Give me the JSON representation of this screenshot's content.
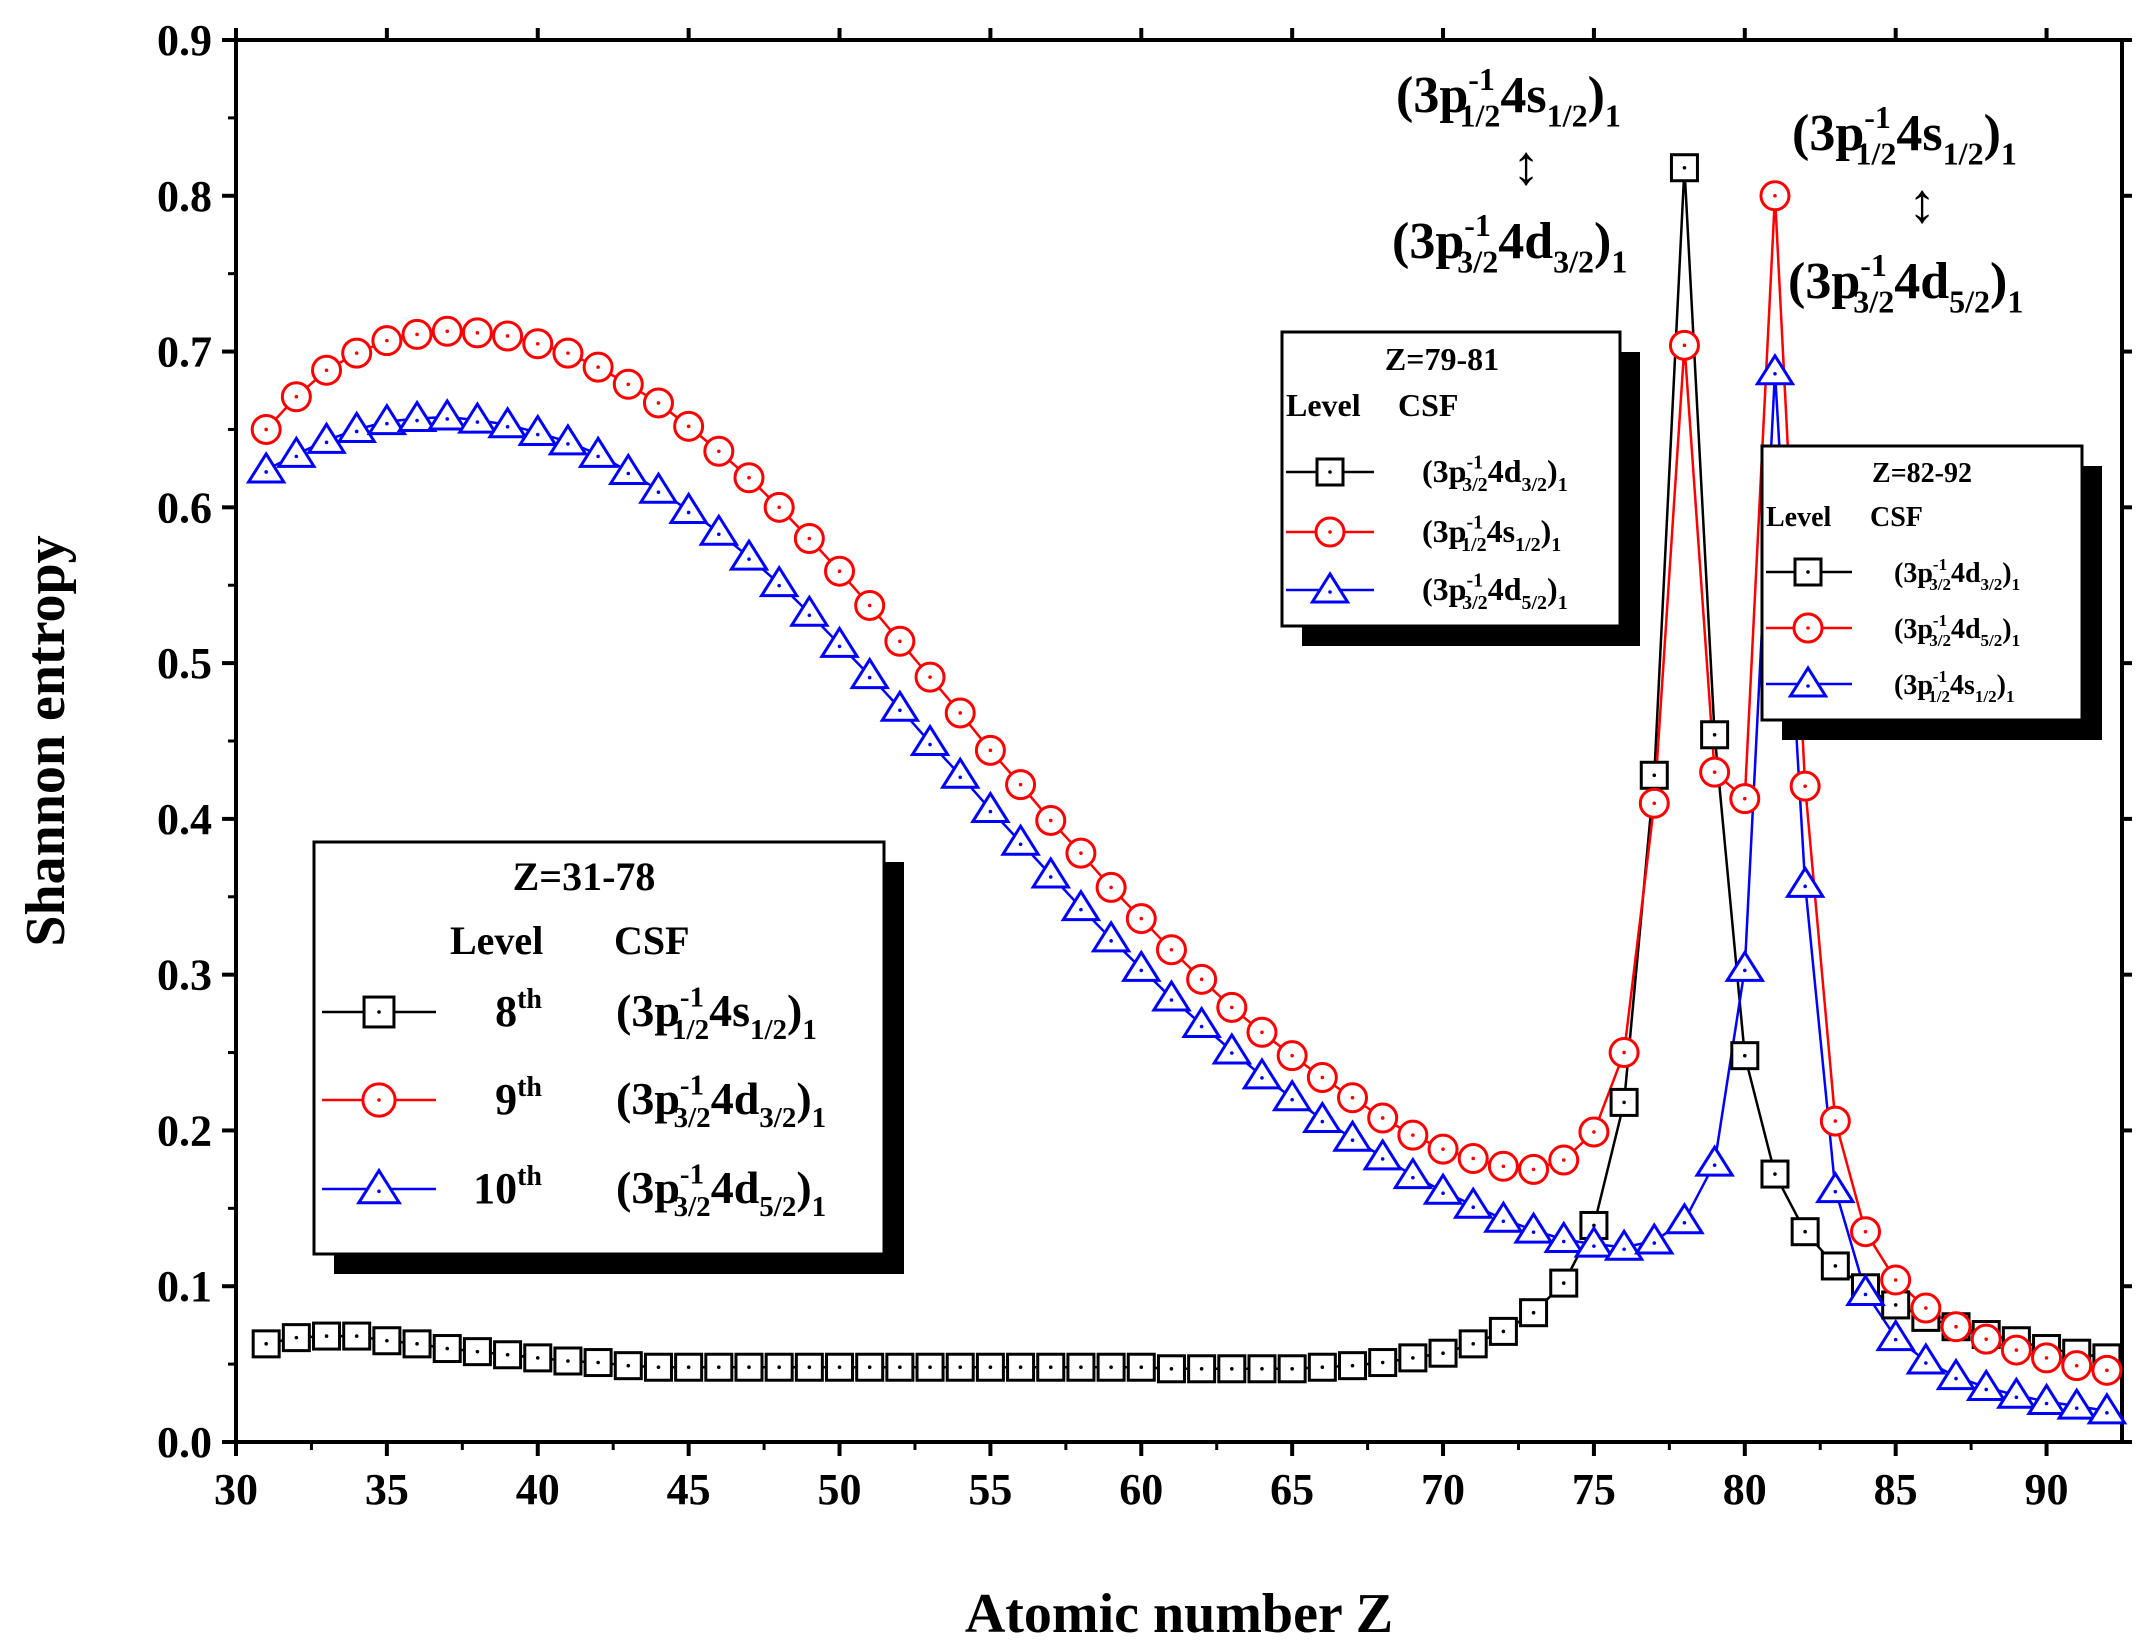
{
  "chart_data": {
    "type": "line",
    "xlabel": "Atomic number Z",
    "ylabel": "Shannon entropy",
    "xlim": [
      30,
      92.5
    ],
    "ylim": [
      0.0,
      0.9
    ],
    "xticks": [
      "30",
      "35",
      "40",
      "45",
      "50",
      "55",
      "60",
      "65",
      "70",
      "75",
      "80",
      "85",
      "90"
    ],
    "yticks": [
      "0.0",
      "0.1",
      "0.2",
      "0.3",
      "0.4",
      "0.5",
      "0.6",
      "0.7",
      "0.8",
      "0.9"
    ],
    "x": [
      31,
      32,
      33,
      34,
      35,
      36,
      37,
      38,
      39,
      40,
      41,
      42,
      43,
      44,
      45,
      46,
      47,
      48,
      49,
      50,
      51,
      52,
      53,
      54,
      55,
      56,
      57,
      58,
      59,
      60,
      61,
      62,
      63,
      64,
      65,
      66,
      67,
      68,
      69,
      70,
      71,
      72,
      73,
      74,
      75,
      76,
      77,
      78,
      79,
      80,
      81,
      82,
      83,
      84,
      85,
      86,
      87,
      88,
      89,
      90,
      91,
      92
    ],
    "series": [
      {
        "name": "black-square",
        "color": "#000000",
        "marker": "square",
        "values": [
          0.063,
          0.067,
          0.068,
          0.068,
          0.065,
          0.063,
          0.06,
          0.058,
          0.056,
          0.054,
          0.052,
          0.051,
          0.049,
          0.048,
          0.048,
          0.048,
          0.048,
          0.048,
          0.048,
          0.048,
          0.048,
          0.048,
          0.048,
          0.048,
          0.048,
          0.048,
          0.048,
          0.048,
          0.048,
          0.048,
          0.047,
          0.047,
          0.047,
          0.047,
          0.047,
          0.048,
          0.049,
          0.051,
          0.054,
          0.057,
          0.063,
          0.071,
          0.083,
          0.102,
          0.139,
          0.218,
          0.428,
          0.818,
          0.454,
          0.248,
          0.172,
          0.135,
          0.113,
          0.099,
          0.088,
          0.08,
          0.074,
          0.069,
          0.065,
          0.06,
          0.057,
          0.054
        ]
      },
      {
        "name": "red-circle",
        "color": "#ff0000",
        "marker": "circle",
        "values": [
          0.65,
          0.671,
          0.688,
          0.699,
          0.707,
          0.711,
          0.713,
          0.712,
          0.71,
          0.705,
          0.699,
          0.69,
          0.679,
          0.667,
          0.652,
          0.636,
          0.619,
          0.6,
          0.58,
          0.559,
          0.537,
          0.514,
          0.491,
          0.468,
          0.444,
          0.422,
          0.399,
          0.378,
          0.356,
          0.336,
          0.316,
          0.297,
          0.279,
          0.263,
          0.248,
          0.234,
          0.221,
          0.208,
          0.197,
          0.188,
          0.182,
          0.177,
          0.175,
          0.181,
          0.199,
          0.25,
          0.41,
          0.704,
          0.43,
          0.413,
          0.8,
          0.421,
          0.206,
          0.135,
          0.104,
          0.086,
          0.074,
          0.066,
          0.059,
          0.054,
          0.049,
          0.046
        ]
      },
      {
        "name": "blue-triangle",
        "color": "#0000ff",
        "marker": "triangle",
        "values": [
          0.624,
          0.634,
          0.643,
          0.65,
          0.655,
          0.657,
          0.658,
          0.656,
          0.653,
          0.648,
          0.642,
          0.634,
          0.623,
          0.611,
          0.598,
          0.584,
          0.568,
          0.551,
          0.532,
          0.512,
          0.492,
          0.471,
          0.449,
          0.428,
          0.406,
          0.385,
          0.364,
          0.343,
          0.323,
          0.304,
          0.285,
          0.268,
          0.251,
          0.235,
          0.221,
          0.207,
          0.195,
          0.183,
          0.171,
          0.161,
          0.152,
          0.143,
          0.136,
          0.13,
          0.127,
          0.125,
          0.129,
          0.142,
          0.179,
          0.304,
          0.687,
          0.358,
          0.162,
          0.096,
          0.067,
          0.052,
          0.042,
          0.035,
          0.03,
          0.026,
          0.023,
          0.02
        ]
      }
    ]
  },
  "legend_main": {
    "title": "Z=31-78",
    "col_level": "Level",
    "col_csf": "CSF",
    "rows": [
      {
        "level": "8",
        "sup": "th",
        "csf": {
          "shell": "(3p",
          "exp": "-1",
          "sub1": "1/2",
          "mid": "4s",
          "sub2": "1/2",
          "end": ")",
          "j": "1"
        }
      },
      {
        "level": "9",
        "sup": "th",
        "csf": {
          "shell": "(3p",
          "exp": "-1",
          "sub1": "3/2",
          "mid": "4d",
          "sub2": "3/2",
          "end": ")",
          "j": "1"
        }
      },
      {
        "level": "10",
        "sup": "th",
        "csf": {
          "shell": "(3p",
          "exp": "-1",
          "sub1": "3/2",
          "mid": "4d",
          "sub2": "5/2",
          "end": ")",
          "j": "1"
        }
      }
    ]
  },
  "legend_mid": {
    "title": "Z=79-81",
    "col_level": "Level",
    "col_csf": "CSF",
    "rows": [
      {
        "csf": {
          "shell": "(3p",
          "exp": "-1",
          "sub1": "3/2",
          "mid": "4d",
          "sub2": "3/2",
          "end": ")",
          "j": "1"
        }
      },
      {
        "csf": {
          "shell": "(3p",
          "exp": "-1",
          "sub1": "1/2",
          "mid": "4s",
          "sub2": "1/2",
          "end": ")",
          "j": "1"
        }
      },
      {
        "csf": {
          "shell": "(3p",
          "exp": "-1",
          "sub1": "3/2",
          "mid": "4d",
          "sub2": "5/2",
          "end": ")",
          "j": "1"
        }
      }
    ]
  },
  "legend_right": {
    "title": "Z=82-92",
    "col_level": "Level",
    "col_csf": "CSF",
    "rows": [
      {
        "csf": {
          "shell": "(3p",
          "exp": "-1",
          "sub1": "3/2",
          "mid": "4d",
          "sub2": "3/2",
          "end": ")",
          "j": "1"
        }
      },
      {
        "csf": {
          "shell": "(3p",
          "exp": "-1",
          "sub1": "3/2",
          "mid": "4d",
          "sub2": "5/2",
          "end": ")",
          "j": "1"
        }
      },
      {
        "csf": {
          "shell": "(3p",
          "exp": "-1",
          "sub1": "1/2",
          "mid": "4s",
          "sub2": "1/2",
          "end": ")",
          "j": "1"
        }
      }
    ]
  },
  "annotations": [
    {
      "top": {
        "shell": "(3p",
        "exp": "-1",
        "sub1": "1/2",
        "mid": "4s",
        "sub2": "1/2",
        "end": ")",
        "j": "1"
      },
      "arrow": "↕",
      "bottom": {
        "shell": "(3p",
        "exp": "-1",
        "sub1": "3/2",
        "mid": "4d",
        "sub2": "3/2",
        "end": ")",
        "j": "1"
      }
    },
    {
      "top": {
        "shell": "(3p",
        "exp": "-1",
        "sub1": "1/2",
        "mid": "4s",
        "sub2": "1/2",
        "end": ")",
        "j": "1"
      },
      "arrow": "↕",
      "bottom": {
        "shell": "(3p",
        "exp": "-1",
        "sub1": "3/2",
        "mid": "4d",
        "sub2": "5/2",
        "end": ")",
        "j": "1"
      }
    }
  ]
}
